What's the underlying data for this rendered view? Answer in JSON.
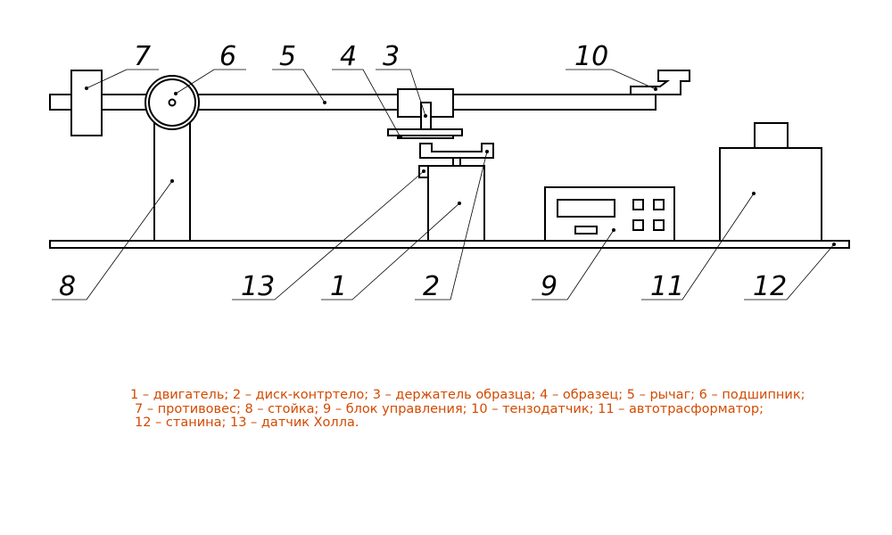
{
  "callouts": {
    "c1": "1",
    "c2": "2",
    "c3": "3",
    "c4": "4",
    "c5": "5",
    "c6": "6",
    "c7": "7",
    "c8": "8",
    "c9": "9",
    "c10": "10",
    "c11": "11",
    "c12": "12",
    "c13": "13"
  },
  "legend": {
    "line1": "1 – двигатель; 2 – диск-контртело; 3 – держатель образца; 4 – образец; 5 – рычаг; 6 – подшипник;",
    "line2": "7 – противовес; 8 – стойка; 9 – блок управления; 10 – тензодатчик; 11 – автотрасформатор;",
    "line3": "12 – станина; 13 – датчик Холла."
  }
}
